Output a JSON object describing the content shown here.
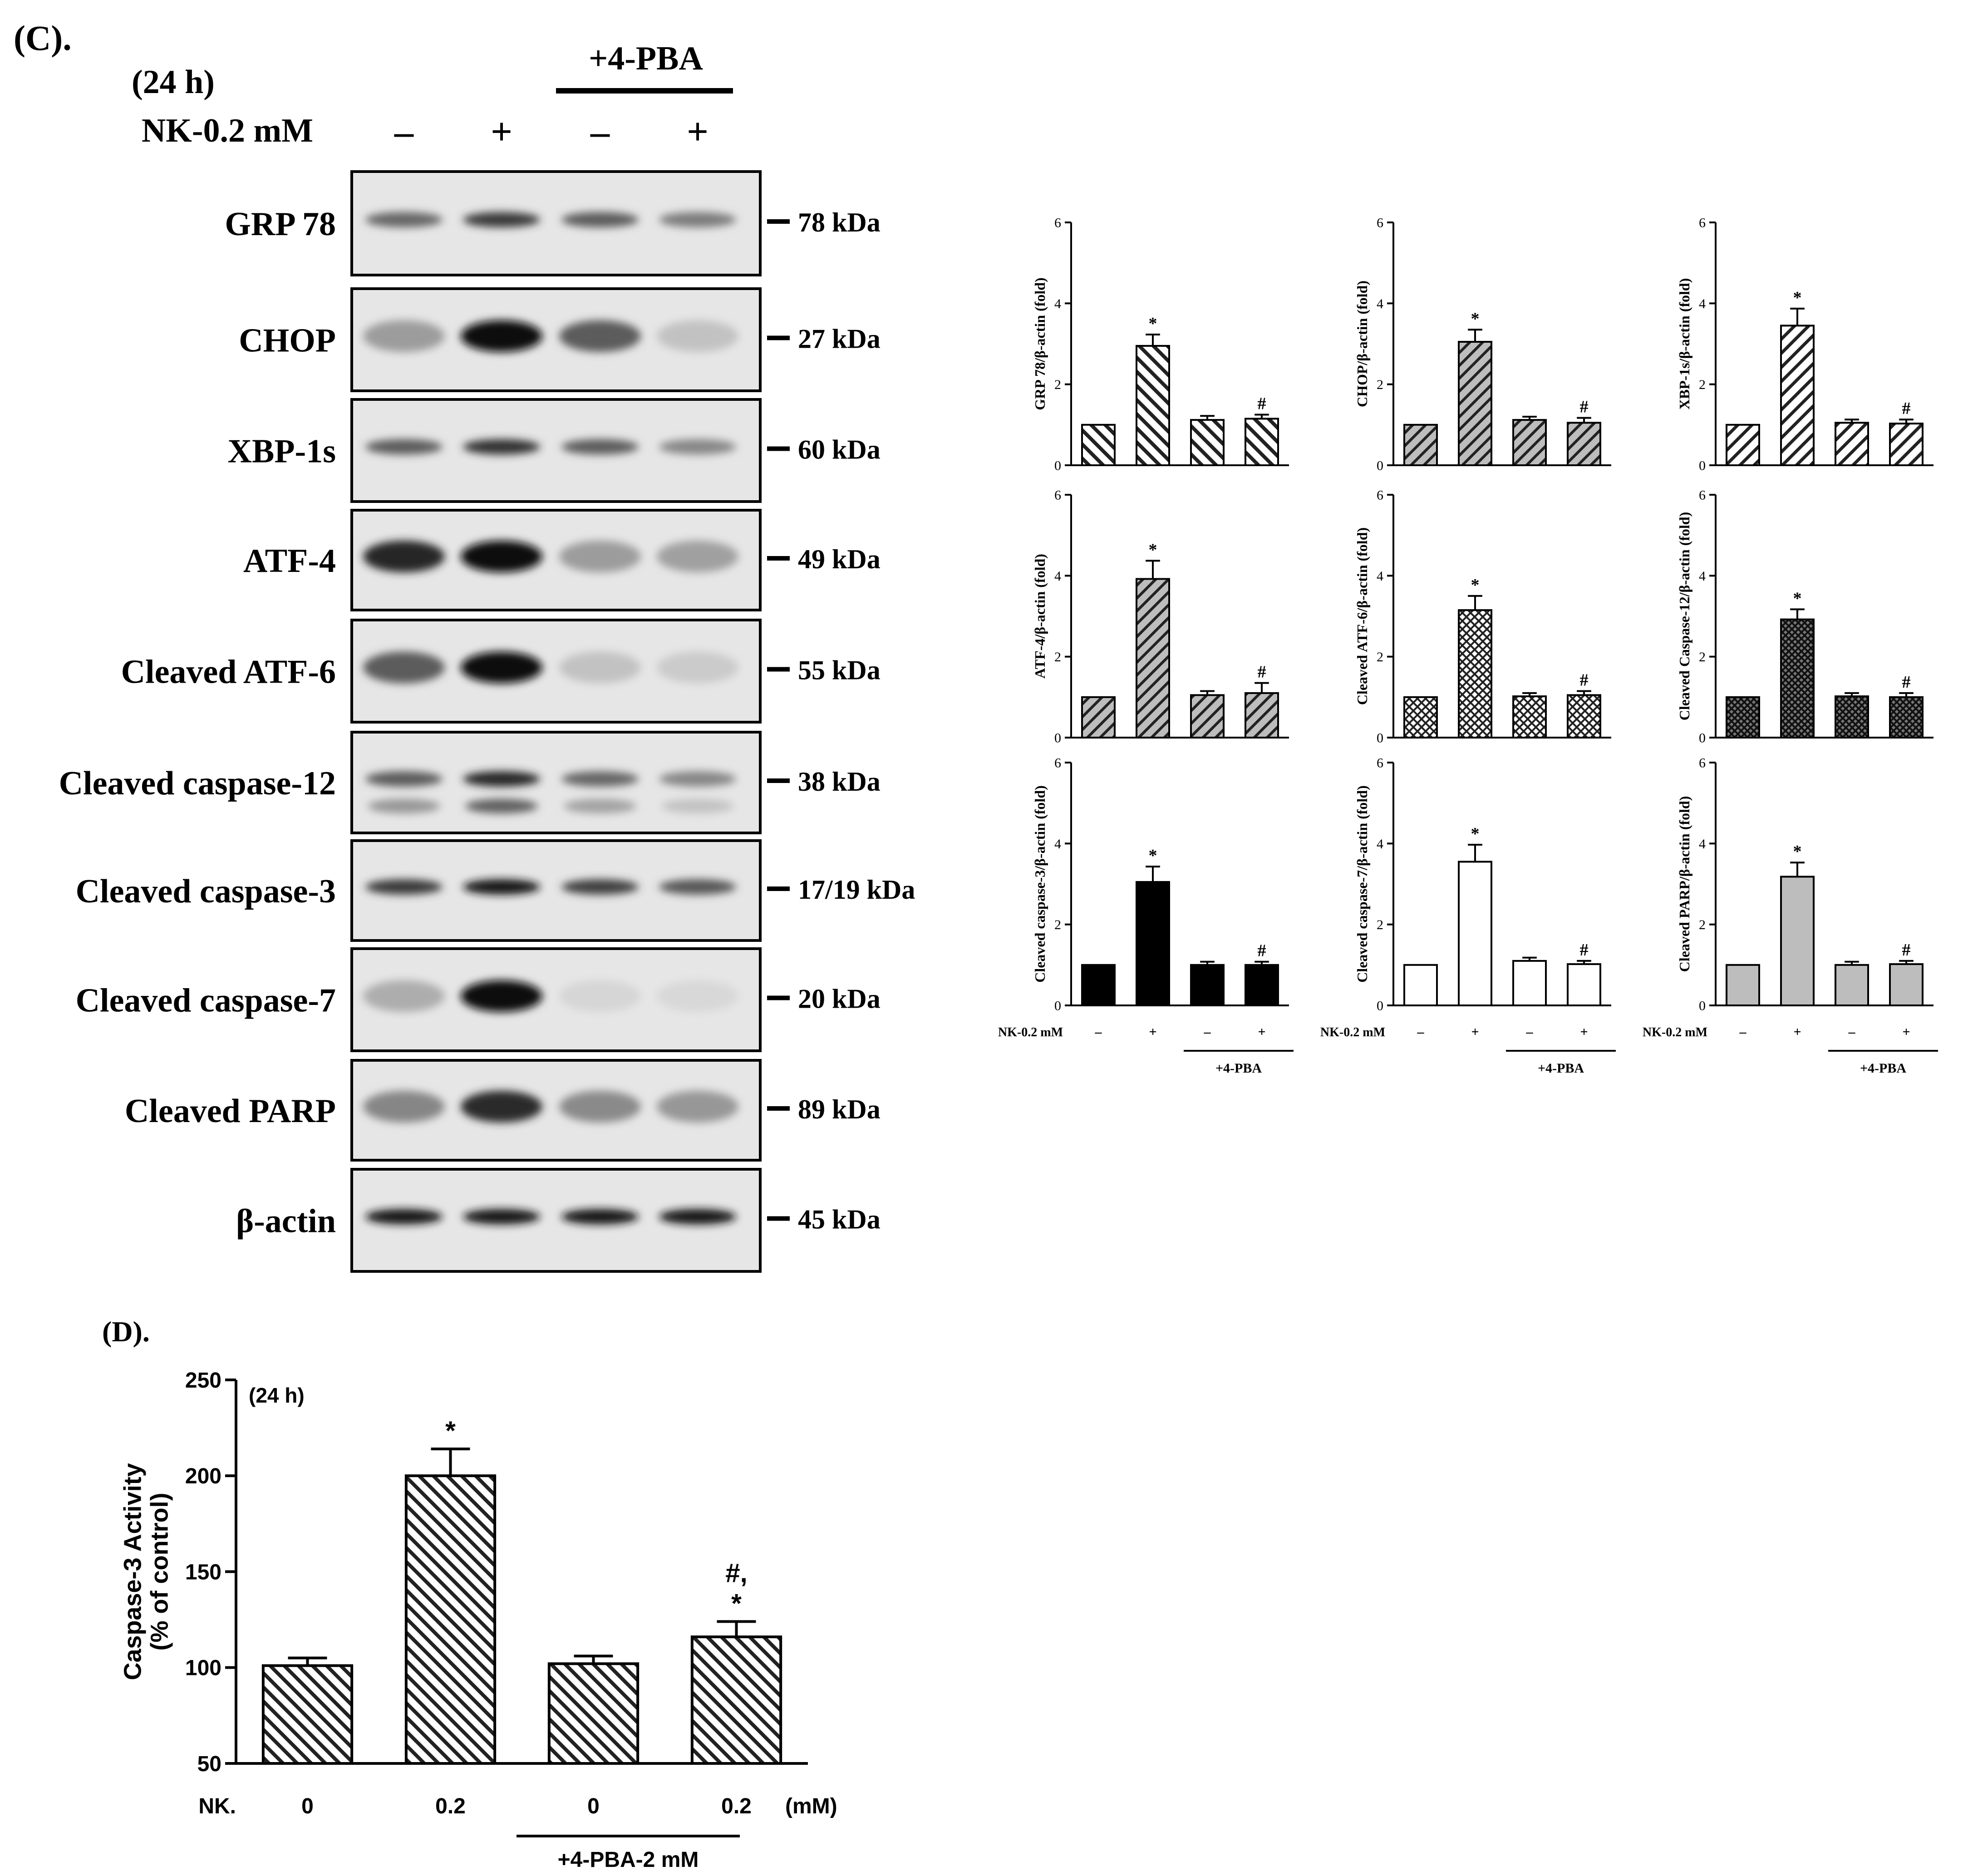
{
  "figure": {
    "panel_c_label": "(C).",
    "panel_d_label": "(D)."
  },
  "blot": {
    "time_label": "(24 h)",
    "treatment_label": "NK-0.2 mM",
    "pba_label": "+4-PBA",
    "lane_signs": [
      "–",
      "+",
      "–",
      "+"
    ],
    "bands": [
      {
        "label": "GRP 78",
        "kda": "78 kDa",
        "intensity": [
          0.55,
          0.75,
          0.6,
          0.45
        ],
        "shape": "thin"
      },
      {
        "label": "CHOP",
        "kda": "27 kDa",
        "intensity": [
          0.3,
          0.95,
          0.6,
          0.12
        ],
        "shape": "blob"
      },
      {
        "label": "XBP-1s",
        "kda": "60 kDa",
        "intensity": [
          0.6,
          0.8,
          0.6,
          0.4
        ],
        "shape": "thin"
      },
      {
        "label": "ATF-4",
        "kda": "49 kDa",
        "intensity": [
          0.85,
          0.95,
          0.3,
          0.28
        ],
        "shape": "blob"
      },
      {
        "label": "Cleaved ATF-6",
        "kda": "55 kDa",
        "intensity": [
          0.6,
          0.98,
          0.12,
          0.08
        ],
        "shape": "blob"
      },
      {
        "label": "Cleaved caspase-12",
        "kda": "38 kDa",
        "intensity": [
          0.6,
          0.85,
          0.55,
          0.4
        ],
        "shape": "double"
      },
      {
        "label": "Cleaved caspase-3",
        "kda": "17/19 kDa",
        "intensity": [
          0.75,
          0.92,
          0.72,
          0.62
        ],
        "shape": "thin"
      },
      {
        "label": "Cleaved caspase-7",
        "kda": "20 kDa",
        "intensity": [
          0.22,
          0.95,
          0.03,
          0.02
        ],
        "shape": "blob"
      },
      {
        "label": "Cleaved PARP",
        "kda": "89 kDa",
        "intensity": [
          0.4,
          0.82,
          0.38,
          0.32
        ],
        "shape": "blob"
      },
      {
        "label": "β-actin",
        "kda": "45 kDa",
        "intensity": [
          0.92,
          0.92,
          0.92,
          0.92
        ],
        "shape": "thin"
      }
    ]
  },
  "small_x_axis": {
    "treatment_label": "NK-0.2 mM",
    "signs": [
      "–",
      "+",
      "–",
      "+"
    ],
    "pba_label": "+4-PBA"
  },
  "chart_data": [
    {
      "type": "bar",
      "ylabel": "GRP 78/β-actin (fold)",
      "ylim": [
        0,
        6
      ],
      "yticks": [
        0,
        2,
        4,
        6
      ],
      "values": [
        1.0,
        2.95,
        1.12,
        1.15
      ],
      "errors": [
        0,
        0.28,
        0.1,
        0.1
      ],
      "marks": [
        "",
        "*",
        "",
        "#"
      ],
      "fill": "hatch-back"
    },
    {
      "type": "bar",
      "ylabel": "CHOP/β-actin (fold)",
      "ylim": [
        0,
        6
      ],
      "yticks": [
        0,
        2,
        4,
        6
      ],
      "values": [
        1.0,
        3.05,
        1.12,
        1.05
      ],
      "errors": [
        0,
        0.3,
        0.08,
        0.12
      ],
      "marks": [
        "",
        "*",
        "",
        "#"
      ],
      "fill": "hatch-fwd-gray"
    },
    {
      "type": "bar",
      "ylabel": "XBP-1s/β-actin (fold)",
      "ylim": [
        0,
        6
      ],
      "yticks": [
        0,
        2,
        4,
        6
      ],
      "values": [
        1.0,
        3.45,
        1.05,
        1.03
      ],
      "errors": [
        0,
        0.42,
        0.08,
        0.1
      ],
      "marks": [
        "",
        "*",
        "",
        "#"
      ],
      "fill": "hatch-fwd"
    },
    {
      "type": "bar",
      "ylabel": "ATF-4/β-actin (fold)",
      "ylim": [
        0,
        6
      ],
      "yticks": [
        0,
        2,
        4,
        6
      ],
      "values": [
        1.0,
        3.92,
        1.05,
        1.1
      ],
      "errors": [
        0,
        0.45,
        0.1,
        0.25
      ],
      "marks": [
        "",
        "*",
        "",
        "#"
      ],
      "fill": "hatch-fwd-gray"
    },
    {
      "type": "bar",
      "ylabel": "Cleaved ATF-6/β-actin (fold)",
      "ylim": [
        0,
        6
      ],
      "yticks": [
        0,
        2,
        4,
        6
      ],
      "values": [
        1.0,
        3.15,
        1.02,
        1.05
      ],
      "errors": [
        0,
        0.35,
        0.08,
        0.1
      ],
      "marks": [
        "",
        "*",
        "",
        "#"
      ],
      "fill": "crosshatch"
    },
    {
      "type": "bar",
      "ylabel": "Cleaved Caspase-12/β-actin (fold)",
      "ylim": [
        0,
        6
      ],
      "yticks": [
        0,
        2,
        4,
        6
      ],
      "values": [
        1.0,
        2.92,
        1.02,
        1.0
      ],
      "errors": [
        0,
        0.25,
        0.08,
        0.1
      ],
      "marks": [
        "",
        "*",
        "",
        "#"
      ],
      "fill": "crosshatch-dark"
    },
    {
      "type": "bar",
      "ylabel": "Cleaved caspase-3/β-actin (fold)",
      "ylim": [
        0,
        6
      ],
      "yticks": [
        0,
        2,
        4,
        6
      ],
      "values": [
        1.0,
        3.05,
        1.0,
        1.0
      ],
      "errors": [
        0,
        0.38,
        0.08,
        0.08
      ],
      "marks": [
        "",
        "*",
        "",
        "#"
      ],
      "fill": "black"
    },
    {
      "type": "bar",
      "ylabel": "Cleaved caspase-7/β-actin (fold)",
      "ylim": [
        0,
        6
      ],
      "yticks": [
        0,
        2,
        4,
        6
      ],
      "values": [
        1.0,
        3.55,
        1.1,
        1.02
      ],
      "errors": [
        0,
        0.42,
        0.08,
        0.08
      ],
      "marks": [
        "",
        "*",
        "",
        "#"
      ],
      "fill": "white"
    },
    {
      "type": "bar",
      "ylabel": "Cleaved PARP/β-actin (fold)",
      "ylim": [
        0,
        6
      ],
      "yticks": [
        0,
        2,
        4,
        6
      ],
      "values": [
        1.0,
        3.18,
        1.0,
        1.02
      ],
      "errors": [
        0,
        0.35,
        0.08,
        0.08
      ],
      "marks": [
        "",
        "*",
        "",
        "#"
      ],
      "fill": "gray"
    },
    {
      "type": "bar",
      "ylabel": "Caspase-3 Activity\n(% of control)",
      "annotation": "(24 h)",
      "ylim": [
        50,
        250
      ],
      "yticks": [
        50,
        100,
        150,
        200,
        250
      ],
      "categories": [
        "0",
        "0.2",
        "0",
        "0.2"
      ],
      "x_prefix": "NK.",
      "x_unit": "(mM)",
      "group_label": "+4-PBA-2 mM",
      "values": [
        101,
        200,
        102,
        116
      ],
      "errors": [
        4,
        14,
        4,
        8
      ],
      "marks": [
        "",
        "*",
        "",
        "#,\n*"
      ],
      "fill": "hatch-back"
    }
  ]
}
